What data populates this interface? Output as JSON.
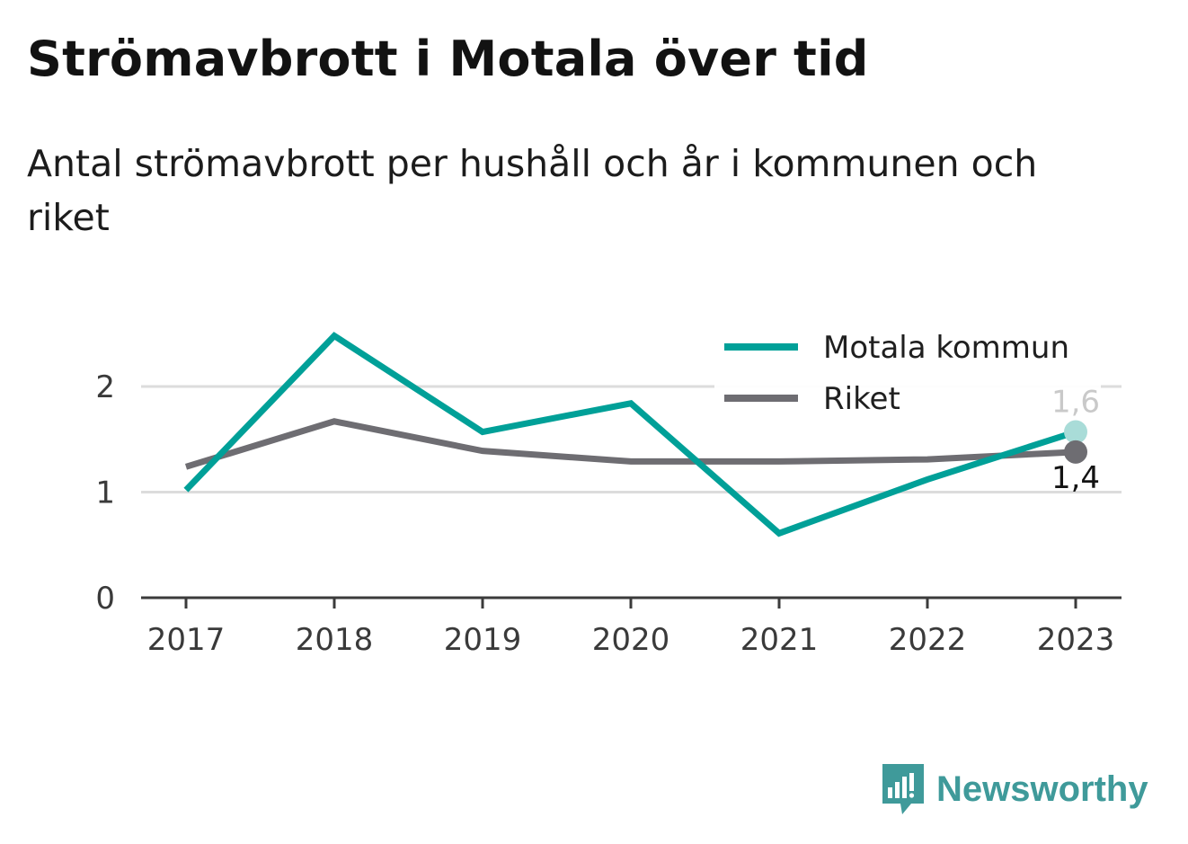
{
  "title": "Strömavbrott i Motala över tid",
  "subtitle": "Antal strömavbrott per hushåll och år i kommunen och riket",
  "brand": {
    "name": "Newsworthy",
    "icon": "newsworthy-logo-icon",
    "color": "#3f9a9a"
  },
  "chart_data": {
    "type": "line",
    "title": "Strömavbrott i Motala över tid",
    "subtitle": "Antal strömavbrott per hushåll och år i kommunen och riket",
    "x": [
      "2017",
      "2018",
      "2019",
      "2020",
      "2021",
      "2022",
      "2023"
    ],
    "ylim": [
      0,
      2.5
    ],
    "yticks": [
      0,
      1,
      2
    ],
    "ytick_labels": [
      "0",
      "1",
      "2"
    ],
    "grid": true,
    "legend": "top-right",
    "series": [
      {
        "name": "Motala kommun",
        "color": "#00a098",
        "values": [
          1.02,
          2.48,
          1.57,
          1.84,
          0.61,
          1.12,
          1.57
        ],
        "end_label": "1,6"
      },
      {
        "name": "Riket",
        "color": "#6e6d72",
        "values": [
          1.24,
          1.67,
          1.39,
          1.29,
          1.29,
          1.31,
          1.38
        ],
        "end_label": "1,4"
      }
    ]
  }
}
